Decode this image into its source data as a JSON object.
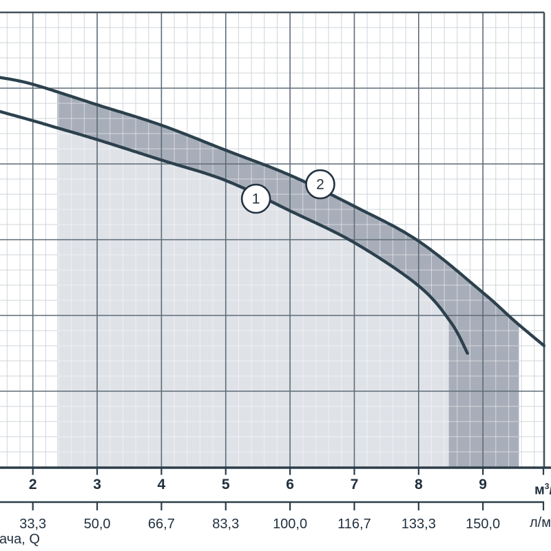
{
  "labels": {
    "flow_title_fragment": "ача, Q",
    "m3h_unit_base": "м",
    "m3h_unit_sup": "3",
    "m3h_unit_slash": "/",
    "lmin_unit_fragment": "л/м"
  },
  "colors": {
    "background": "#ffffff",
    "grid_minor": "#cfd4d9",
    "grid_minor_on_region": "rgba(255,255,255,0.5)",
    "grid_major": "#5d6b76",
    "frame": "#42525e",
    "axis": "#2b3d49",
    "curve": "#2c414d",
    "region_light": "#dfe2e7",
    "region_dark": "#a8aeb9",
    "text_primary": "#202f3d",
    "text_secondary": "#22303f",
    "marker_fill": "#ffffff",
    "marker_stroke": "#223240"
  },
  "chart_data": {
    "type": "line",
    "description": "Pump performance curves (head vs flow) with shaded operating ranges; left y-axis cropped out of view",
    "x_axis_primary": {
      "tick_values": [
        2,
        3,
        4,
        5,
        6,
        7,
        8,
        9
      ],
      "unit_visible": "м³/"
    },
    "x_axis_secondary": {
      "tick_labels": [
        "33,3",
        "50,0",
        "66,7",
        "83,3",
        "100,0",
        "116,7",
        "133,3",
        "150,0"
      ],
      "unit_visible": "л/м"
    },
    "x_axis_title_visible": "ача, Q",
    "y_axis": {
      "tick_labels_visible": false,
      "major_grid_rows": 6,
      "minor_per_major": 5
    },
    "grid": {
      "x_minor_step_m3h": 0.2,
      "on": true
    },
    "series": [
      {
        "name": "1",
        "x_m3h": [
          1.49,
          2.0,
          2.4,
          3.0,
          4.0,
          5.0,
          6.0,
          7.0,
          8.0,
          8.5,
          8.76
        ],
        "y_grid": [
          4.7,
          4.58,
          4.48,
          4.33,
          4.06,
          3.79,
          3.39,
          2.97,
          2.4,
          1.92,
          1.51
        ],
        "marker": {
          "x": 5.47,
          "y": 3.55,
          "label": "1"
        }
      },
      {
        "name": "2",
        "x_m3h": [
          1.49,
          2.0,
          3.0,
          4.0,
          5.0,
          6.0,
          7.0,
          8.0,
          9.0,
          9.5,
          9.95
        ],
        "y_grid": [
          5.15,
          5.06,
          4.79,
          4.52,
          4.19,
          3.86,
          3.45,
          2.99,
          2.31,
          1.93,
          1.61
        ],
        "marker": {
          "x": 6.47,
          "y": 3.74,
          "label": "2"
        }
      }
    ],
    "regions": [
      {
        "name": "operating-range-curve-2",
        "under_series": "2",
        "x_from": 2.38,
        "x_to": 9.56,
        "color": "#a8aeb9"
      },
      {
        "name": "operating-range-curve-1",
        "under_series": "1",
        "x_from": 2.38,
        "x_to": 8.47,
        "color": "#dfe2e7"
      }
    ]
  }
}
